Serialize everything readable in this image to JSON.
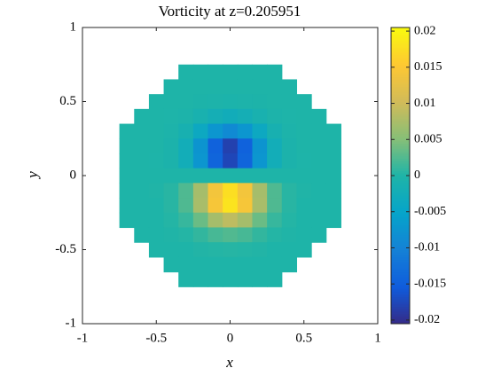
{
  "chart_data": {
    "type": "heatmap",
    "title": "Vorticity at z=0.205951",
    "xlabel": "x",
    "ylabel": "y",
    "x": [
      -0.7,
      -0.6,
      -0.5,
      -0.4,
      -0.3,
      -0.2,
      -0.1,
      0,
      0.1,
      0.2,
      0.3,
      0.4,
      0.5,
      0.6,
      0.7
    ],
    "y": [
      0.7,
      0.6,
      0.5,
      0.4,
      0.3,
      0.2,
      0.1,
      0,
      -0.1,
      -0.2,
      -0.3,
      -0.4,
      -0.5,
      -0.6,
      -0.7
    ],
    "z": [
      [
        null,
        null,
        null,
        null,
        0,
        0,
        0,
        0,
        0,
        0,
        0,
        null,
        null,
        null,
        null
      ],
      [
        null,
        null,
        null,
        0,
        0,
        0,
        0,
        0,
        0,
        0,
        0,
        0,
        null,
        null,
        null
      ],
      [
        null,
        null,
        0,
        0,
        0,
        -0.0002,
        -0.0003,
        -0.0004,
        -0.0003,
        -0.0002,
        0,
        0,
        0,
        null,
        null
      ],
      [
        null,
        0,
        0,
        -0.0001,
        -0.0003,
        -0.001,
        -0.002,
        -0.0025,
        -0.002,
        -0.001,
        -0.0003,
        -0.0001,
        0,
        0,
        null
      ],
      [
        0,
        0,
        0,
        -0.0003,
        -0.0012,
        -0.0037,
        -0.0072,
        -0.0089,
        -0.0072,
        -0.0037,
        -0.0012,
        -0.0003,
        0,
        0,
        0
      ],
      [
        0,
        0,
        0,
        -0.0005,
        -0.0024,
        -0.0074,
        -0.0145,
        -0.0181,
        -0.0145,
        -0.0074,
        -0.0024,
        -0.0005,
        0,
        0,
        0
      ],
      [
        0,
        0,
        -0.0001,
        -0.0005,
        -0.0024,
        -0.0072,
        -0.0141,
        -0.0176,
        -0.0141,
        -0.0072,
        -0.0024,
        -0.0005,
        -0.0001,
        0,
        0
      ],
      [
        0,
        0,
        0,
        0,
        0,
        0,
        0,
        0,
        0,
        0,
        0,
        0,
        0,
        0,
        0
      ],
      [
        0,
        0,
        0.0001,
        0.0005,
        0.0024,
        0.0072,
        0.0141,
        0.0176,
        0.0141,
        0.0072,
        0.0024,
        0.0005,
        0.0001,
        0,
        0
      ],
      [
        0,
        0,
        0,
        0.0005,
        0.0024,
        0.0074,
        0.0145,
        0.0181,
        0.0145,
        0.0074,
        0.0024,
        0.0005,
        0,
        0,
        0
      ],
      [
        0,
        0,
        0,
        0.0003,
        0.0012,
        0.0037,
        0.0072,
        0.0089,
        0.0072,
        0.0037,
        0.0012,
        0.0003,
        0,
        0,
        0
      ],
      [
        null,
        0,
        0,
        0.0001,
        0.0003,
        0.001,
        0.002,
        0.0025,
        0.002,
        0.001,
        0.0003,
        0.0001,
        0,
        0,
        null
      ],
      [
        null,
        null,
        0,
        0,
        0,
        0.0002,
        0.0003,
        0.0004,
        0.0003,
        0.0002,
        0,
        0,
        0,
        null,
        null
      ],
      [
        null,
        null,
        null,
        0,
        0,
        0,
        0,
        0,
        0,
        0,
        0,
        0,
        null,
        null,
        null
      ],
      [
        null,
        null,
        null,
        null,
        0,
        0,
        0,
        0,
        0,
        0,
        0,
        null,
        null,
        null,
        null
      ]
    ],
    "cell": 0.1,
    "xlim": [
      -1,
      1
    ],
    "ylim": [
      -1,
      1
    ],
    "xticks": [
      -1,
      -0.5,
      0,
      0.5,
      1
    ],
    "yticks": [
      -1,
      -0.5,
      0,
      0.5,
      1
    ],
    "colormap": "parula",
    "clim": [
      -0.0205,
      0.0205
    ],
    "cticks": [
      -0.02,
      -0.015,
      -0.01,
      -0.005,
      0,
      0.005,
      0.01,
      0.015,
      0.02
    ]
  }
}
